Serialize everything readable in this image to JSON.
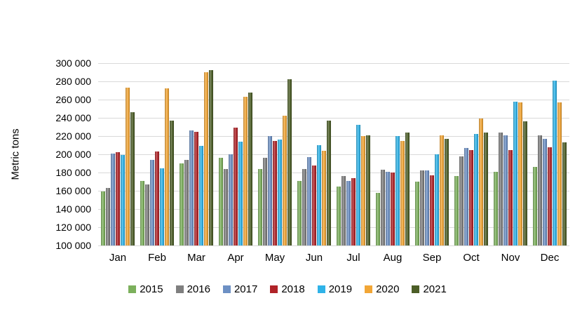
{
  "chart_data": {
    "type": "bar",
    "title": "",
    "xlabel": "",
    "ylabel": "Metric tons",
    "ylim": [
      100000,
      300000
    ],
    "ytick_step": 20000,
    "ytick_labels_top_to_bottom": [
      "300 000",
      "280 000",
      "260 000",
      "240 000",
      "220 000",
      "200 000",
      "180 000",
      "160 000",
      "140 000",
      "120 000",
      "100 000"
    ],
    "grid": "horizontal",
    "gridline_color": "#d9d9d9",
    "legend_position": "bottom",
    "categories": [
      "Jan",
      "Feb",
      "Mar",
      "Apr",
      "May",
      "Jun",
      "Jul",
      "Aug",
      "Sep",
      "Oct",
      "Nov",
      "Dec"
    ],
    "series": [
      {
        "name": "2015",
        "color": "#7cb05c",
        "values": [
          159000,
          171000,
          190000,
          196000,
          184000,
          171000,
          165000,
          158000,
          170000,
          176000,
          181000,
          186000
        ]
      },
      {
        "name": "2016",
        "color": "#7f7f7f",
        "values": [
          163000,
          167000,
          194000,
          184000,
          196000,
          184000,
          176000,
          183000,
          182000,
          198000,
          224000,
          221000
        ]
      },
      {
        "name": "2017",
        "color": "#6d90c4",
        "values": [
          201000,
          194000,
          226000,
          200000,
          220000,
          197000,
          171000,
          181000,
          182000,
          207000,
          221000,
          217000
        ]
      },
      {
        "name": "2018",
        "color": "#b02328",
        "values": [
          202000,
          203000,
          225000,
          229000,
          215000,
          188000,
          174000,
          180000,
          177000,
          205000,
          205000,
          208000
        ]
      },
      {
        "name": "2019",
        "color": "#2fb3e8",
        "values": [
          199000,
          185000,
          209000,
          214000,
          216000,
          210000,
          232000,
          220000,
          200000,
          222000,
          258000,
          281000
        ]
      },
      {
        "name": "2020",
        "color": "#f2a636",
        "values": [
          273000,
          272000,
          290000,
          263000,
          242000,
          204000,
          220000,
          215000,
          221000,
          239000,
          257000,
          257000
        ]
      },
      {
        "name": "2021",
        "color": "#4c5e27",
        "values": [
          246000,
          237000,
          292000,
          268000,
          282000,
          237000,
          221000,
          224000,
          217000,
          224000,
          236000,
          213000
        ]
      }
    ]
  }
}
